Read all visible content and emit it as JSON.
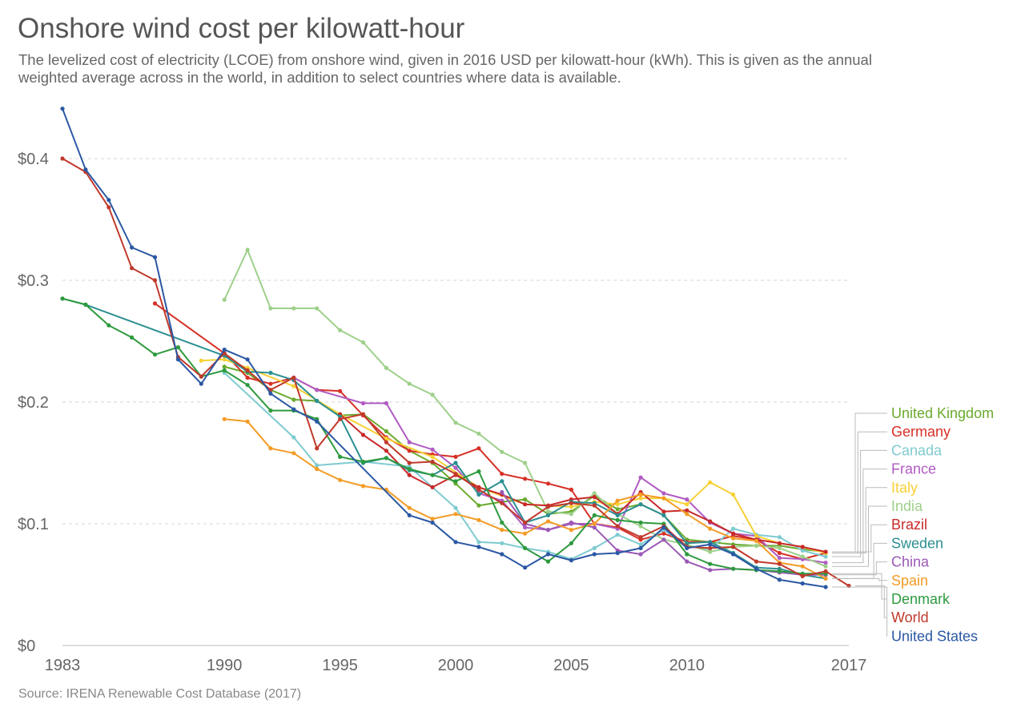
{
  "title": "Onshore wind cost per kilowatt-hour",
  "subtitle": "The levelized cost of electricity (LCOE) from onshore wind, given in 2016 USD per kilowatt-hour (kWh). This is given as the annual weighted average across in the world, in addition to select countries where data is available.",
  "source": "Source: IRENA Renewable Cost Database (2017)",
  "chart_data": {
    "type": "line",
    "title": "Onshore wind cost per kilowatt-hour",
    "xlabel": "",
    "ylabel": "",
    "xlim": [
      1983,
      2017
    ],
    "ylim": [
      0,
      0.44
    ],
    "x_ticks": [
      1983,
      1990,
      1995,
      2000,
      2005,
      2010,
      2017
    ],
    "y_ticks": [
      {
        "value": 0,
        "label": "$0"
      },
      {
        "value": 0.1,
        "label": "$0.1"
      },
      {
        "value": 0.2,
        "label": "$0.2"
      },
      {
        "value": 0.3,
        "label": "$0.3"
      },
      {
        "value": 0.4,
        "label": "$0.4"
      }
    ],
    "grid": "horizontal dashed",
    "legend_position": "right",
    "series": [
      {
        "name": "United Kingdom",
        "color": "#6aaa2e",
        "x": [
          1990,
          1991,
          1992,
          1993,
          1994,
          1995,
          1996,
          1997,
          1998,
          1999,
          2000,
          2001,
          2002,
          2003,
          2004,
          2005,
          2006,
          2007,
          2008,
          2009,
          2010,
          2011,
          2012,
          2013,
          2014,
          2015,
          2016
        ],
        "values": [
          0.229,
          0.224,
          0.21,
          0.202,
          0.201,
          0.189,
          0.19,
          0.176,
          0.16,
          0.15,
          0.133,
          0.115,
          0.118,
          0.12,
          0.108,
          0.11,
          0.123,
          0.112,
          0.116,
          0.107,
          0.087,
          0.085,
          0.083,
          0.082,
          0.082,
          0.079,
          0.077
        ]
      },
      {
        "name": "Germany",
        "color": "#d73027",
        "x": [
          1987,
          1990,
          1991,
          1992,
          1993,
          1994,
          1995,
          1996,
          1997,
          1998,
          1999,
          2000,
          2001,
          2002,
          2003,
          2004,
          2005,
          2006,
          2007,
          2008,
          2009,
          2010,
          2011,
          2012,
          2013,
          2014,
          2015,
          2016
        ],
        "values": [
          0.281,
          0.24,
          0.22,
          0.215,
          0.22,
          0.21,
          0.209,
          0.189,
          0.171,
          0.16,
          0.157,
          0.155,
          0.162,
          0.141,
          0.137,
          0.133,
          0.128,
          0.1,
          0.097,
          0.087,
          0.092,
          0.085,
          0.085,
          0.09,
          0.087,
          0.076,
          0.071,
          0.076
        ]
      },
      {
        "name": "Canada",
        "color": "#7fcbd0",
        "x": [
          1990,
          1993,
          1994,
          1996,
          1998,
          2000,
          2001,
          2002,
          2003,
          2004,
          2005,
          2006,
          2007,
          2008,
          2009,
          2010,
          2011,
          2012,
          2013,
          2014,
          2015,
          2016
        ],
        "values": [
          0.224,
          0.171,
          0.148,
          0.151,
          0.147,
          0.113,
          0.085,
          0.084,
          0.08,
          0.077,
          0.071,
          0.08,
          0.091,
          0.083,
          0.095,
          0.082,
          0.079,
          0.096,
          0.091,
          0.089,
          0.078,
          0.073
        ]
      },
      {
        "name": "France",
        "color": "#b05bc2",
        "x": [
          1993,
          1994,
          1996,
          1997,
          1998,
          1999,
          2000,
          2001,
          2002,
          2003,
          2004,
          2005,
          2006,
          2007,
          2008,
          2009,
          2010,
          2011,
          2012,
          2013,
          2014,
          2015,
          2016
        ],
        "values": [
          0.22,
          0.21,
          0.199,
          0.199,
          0.167,
          0.161,
          0.146,
          0.125,
          0.119,
          0.097,
          0.095,
          0.1,
          0.1,
          0.096,
          0.138,
          0.125,
          0.12,
          0.101,
          0.092,
          0.09,
          0.072,
          0.071,
          0.068
        ]
      },
      {
        "name": "Italy",
        "color": "#f6d034",
        "x": [
          1989,
          1990,
          1991,
          1993,
          1995,
          1997,
          1999,
          2001,
          2003,
          2004,
          2005,
          2006,
          2007,
          2008,
          2009,
          2010,
          2011,
          2012,
          2013,
          2014,
          2015,
          2016
        ],
        "values": [
          0.234,
          0.235,
          0.228,
          0.213,
          0.19,
          0.17,
          0.155,
          0.13,
          0.116,
          0.115,
          0.114,
          0.118,
          0.116,
          0.121,
          0.121,
          0.116,
          0.134,
          0.124,
          0.09,
          0.084,
          0.081,
          0.076
        ]
      },
      {
        "name": "India",
        "color": "#9ed08a",
        "x": [
          1990,
          1991,
          1992,
          1993,
          1994,
          1995,
          1996,
          1997,
          1998,
          1999,
          2000,
          2001,
          2002,
          2003,
          2004,
          2005,
          2006,
          2007,
          2008,
          2009,
          2010,
          2011,
          2012,
          2013,
          2014,
          2015,
          2016
        ],
        "values": [
          0.284,
          0.325,
          0.277,
          0.277,
          0.277,
          0.259,
          0.249,
          0.228,
          0.215,
          0.206,
          0.183,
          0.174,
          0.159,
          0.15,
          0.11,
          0.108,
          0.125,
          0.108,
          0.098,
          0.087,
          0.083,
          0.077,
          0.081,
          0.082,
          0.08,
          0.073,
          0.065
        ]
      },
      {
        "name": "Brazil",
        "color": "#c8292a",
        "x": [
          1995,
          1996,
          1997,
          1998,
          1999,
          2000,
          2001,
          2002,
          2003,
          2004,
          2005,
          2006,
          2007,
          2008,
          2009,
          2010,
          2011,
          2012,
          2013,
          2014,
          2015,
          2016
        ],
        "values": [
          0.19,
          0.173,
          0.16,
          0.14,
          0.13,
          0.14,
          0.13,
          0.124,
          0.116,
          0.115,
          0.12,
          0.122,
          0.108,
          0.126,
          0.11,
          0.111,
          0.102,
          0.092,
          0.087,
          0.084,
          0.081,
          0.077
        ]
      },
      {
        "name": "Sweden",
        "color": "#2c8f91",
        "x": [
          1983,
          1984,
          1990,
          1991,
          1992,
          1993,
          1994,
          1995,
          1996,
          1997,
          1998,
          1999,
          2000,
          2001,
          2002,
          2003,
          2004,
          2005,
          2006,
          2007,
          2008,
          2009,
          2010,
          2011,
          2012,
          2013,
          2014,
          2015,
          2016
        ],
        "values": [
          0.285,
          0.28,
          0.238,
          0.225,
          0.224,
          0.218,
          0.201,
          0.188,
          0.15,
          0.154,
          0.144,
          0.14,
          0.15,
          0.124,
          0.135,
          0.101,
          0.107,
          0.118,
          0.117,
          0.107,
          0.116,
          0.107,
          0.084,
          0.085,
          0.076,
          0.064,
          0.063,
          0.058,
          0.055
        ]
      },
      {
        "name": "China",
        "color": "#9b59b6",
        "x": [
          2002,
          2003,
          2004,
          2005,
          2006,
          2007,
          2008,
          2009,
          2010,
          2011,
          2012,
          2013,
          2014,
          2015,
          2016
        ],
        "values": [
          0.126,
          0.1,
          0.095,
          0.101,
          0.097,
          0.078,
          0.075,
          0.087,
          0.069,
          0.062,
          0.063,
          0.062,
          0.06,
          0.058,
          0.058
        ]
      },
      {
        "name": "Spain",
        "color": "#f39c26",
        "x": [
          1990,
          1991,
          1992,
          1993,
          1994,
          1995,
          1996,
          1997,
          1998,
          1999,
          2000,
          2001,
          2002,
          2003,
          2004,
          2005,
          2006,
          2007,
          2008,
          2009,
          2010,
          2011,
          2012,
          2013,
          2014,
          2015,
          2016
        ],
        "values": [
          0.186,
          0.184,
          0.162,
          0.158,
          0.145,
          0.136,
          0.131,
          0.128,
          0.113,
          0.104,
          0.108,
          0.103,
          0.095,
          0.092,
          0.102,
          0.095,
          0.1,
          0.119,
          0.124,
          0.121,
          0.108,
          0.096,
          0.088,
          0.086,
          0.068,
          0.065,
          0.055
        ]
      },
      {
        "name": "Denmark",
        "color": "#2e9a3e",
        "x": [
          1983,
          1984,
          1985,
          1986,
          1987,
          1988,
          1989,
          1990,
          1991,
          1992,
          1993,
          1994,
          1995,
          1996,
          1997,
          1998,
          1999,
          2000,
          2001,
          2002,
          2003,
          2004,
          2005,
          2006,
          2007,
          2008,
          2009,
          2010,
          2011,
          2012,
          2013,
          2014,
          2015,
          2016
        ],
        "values": [
          0.285,
          0.28,
          0.263,
          0.253,
          0.239,
          0.245,
          0.221,
          0.226,
          0.214,
          0.193,
          0.193,
          0.186,
          0.155,
          0.151,
          0.154,
          0.145,
          0.14,
          0.135,
          0.143,
          0.101,
          0.08,
          0.069,
          0.084,
          0.107,
          0.103,
          0.101,
          0.1,
          0.075,
          0.067,
          0.063,
          0.062,
          0.061,
          0.059,
          0.059
        ]
      },
      {
        "name": "World",
        "color": "#c0392b",
        "x": [
          1983,
          1984,
          1985,
          1986,
          1987,
          1988,
          1989,
          1990,
          1991,
          1992,
          1993,
          1994,
          1995,
          1996,
          1997,
          1998,
          1999,
          2000,
          2001,
          2002,
          2003,
          2004,
          2005,
          2006,
          2007,
          2008,
          2009,
          2010,
          2011,
          2012,
          2013,
          2014,
          2015,
          2016,
          2017
        ],
        "values": [
          0.4,
          0.389,
          0.36,
          0.31,
          0.3,
          0.237,
          0.221,
          0.24,
          0.226,
          0.21,
          0.22,
          0.162,
          0.186,
          0.19,
          0.167,
          0.15,
          0.151,
          0.141,
          0.128,
          0.117,
          0.101,
          0.114,
          0.117,
          0.115,
          0.098,
          0.089,
          0.098,
          0.081,
          0.08,
          0.081,
          0.069,
          0.067,
          0.057,
          0.061,
          0.049
        ]
      },
      {
        "name": "United States",
        "color": "#2b58a3",
        "x": [
          1983,
          1984,
          1985,
          1986,
          1987,
          1988,
          1989,
          1990,
          1991,
          1992,
          1993,
          1994,
          1998,
          1999,
          2000,
          2001,
          2002,
          2003,
          2004,
          2005,
          2006,
          2007,
          2008,
          2009,
          2010,
          2011,
          2012,
          2013,
          2014,
          2015,
          2016
        ],
        "values": [
          0.441,
          0.391,
          0.366,
          0.327,
          0.319,
          0.235,
          0.215,
          0.243,
          0.235,
          0.207,
          0.194,
          0.184,
          0.107,
          0.101,
          0.085,
          0.081,
          0.075,
          0.064,
          0.075,
          0.07,
          0.075,
          0.076,
          0.08,
          0.097,
          0.08,
          0.083,
          0.075,
          0.063,
          0.054,
          0.051,
          0.048
        ]
      }
    ]
  }
}
